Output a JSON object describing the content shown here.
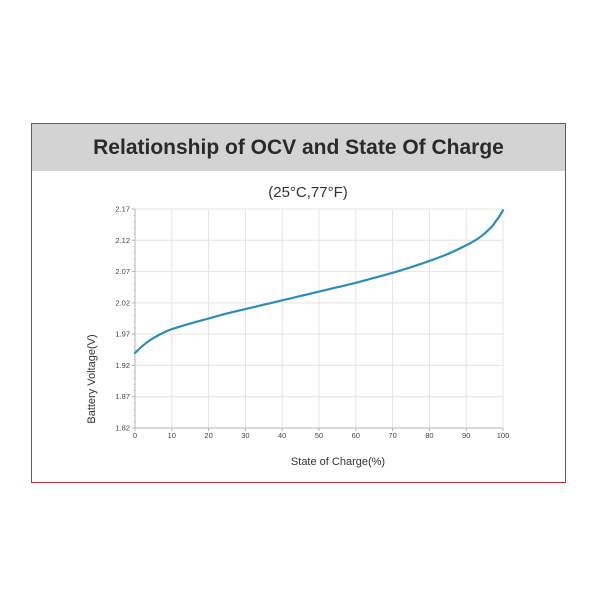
{
  "header": {
    "title": "Relationship of OCV and State Of Charge"
  },
  "chart_data": {
    "type": "line",
    "subtitle": "(25°C,77°F)",
    "xlabel": "State of Charge(%)",
    "ylabel": "Battery Voltage(V)",
    "xlim": [
      0,
      100
    ],
    "ylim": [
      1.82,
      2.17
    ],
    "xticks": [
      "0",
      "10",
      "20",
      "30",
      "40",
      "50",
      "60",
      "70",
      "80",
      "90",
      "100"
    ],
    "yticks": [
      "1.82",
      "1.87",
      "1.92",
      "1.97",
      "2.02",
      "2.07",
      "2.12",
      "2.17"
    ],
    "grid": true,
    "colors": {
      "line": "#2b8cbe",
      "grid": "#e4e4e4",
      "axis": "#b5b5b5",
      "border": "#c9303a"
    },
    "series": [
      {
        "x": [
          0,
          2,
          4,
          6,
          8,
          10,
          15,
          20,
          25,
          30,
          35,
          40,
          45,
          50,
          55,
          60,
          65,
          70,
          75,
          80,
          85,
          90,
          93,
          95,
          97,
          98,
          99,
          100
        ],
        "y": [
          1.94,
          1.951,
          1.96,
          1.967,
          1.973,
          1.978,
          1.987,
          1.995,
          2.003,
          2.01,
          2.017,
          2.024,
          2.031,
          2.038,
          2.045,
          2.052,
          2.06,
          2.068,
          2.077,
          2.087,
          2.098,
          2.112,
          2.122,
          2.131,
          2.142,
          2.15,
          2.158,
          2.168
        ]
      }
    ]
  }
}
